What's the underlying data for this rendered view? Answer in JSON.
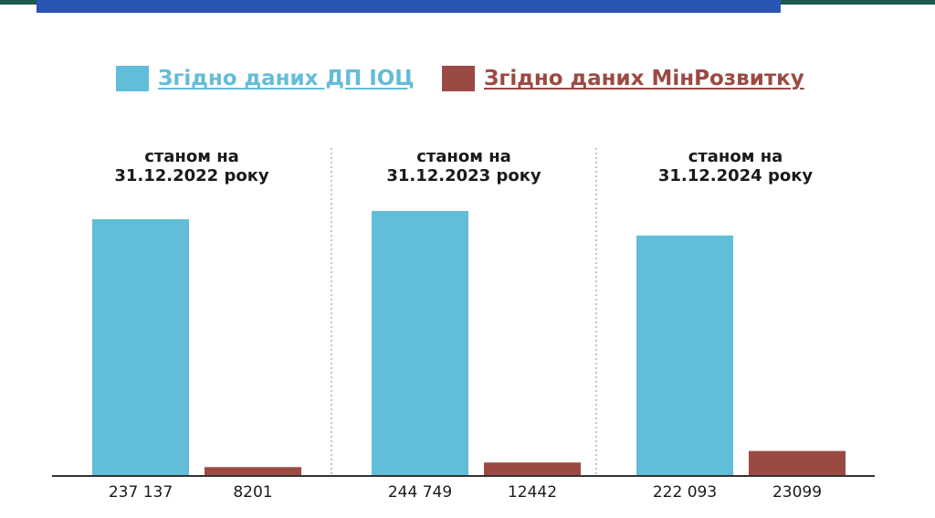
{
  "colors": {
    "series_dp_ioc": "#62bdd8",
    "series_minrozvytku": "#9b4a43",
    "top_strip": "#1d5a4e",
    "top_banner": "#2b55b5"
  },
  "legend": {
    "items": [
      {
        "label": "Згідно даних ДП ІОЦ",
        "color": "#62bdd8"
      },
      {
        "label": "Згідно даних МінРозвитку",
        "color": "#9b4a43"
      }
    ]
  },
  "chart_data": {
    "type": "bar",
    "categories": [
      {
        "title_line1": "станом на",
        "title_line2": "31.12.2022 року"
      },
      {
        "title_line1": "станом на",
        "title_line2": "31.12.2023 року"
      },
      {
        "title_line1": "станом на",
        "title_line2": "31.12.2024 року"
      }
    ],
    "series": [
      {
        "name": "Згідно даних ДП ІОЦ",
        "values": [
          237137,
          244749,
          222093
        ],
        "labels": [
          "237 137",
          "244 749",
          "222 093"
        ]
      },
      {
        "name": "Згідно даних МінРозвитку",
        "values": [
          8201,
          12442,
          23099
        ],
        "labels": [
          "8201",
          "12442",
          "23099"
        ]
      }
    ],
    "ylim": [
      0,
      270000
    ],
    "grid": false,
    "legend_position": "top"
  }
}
